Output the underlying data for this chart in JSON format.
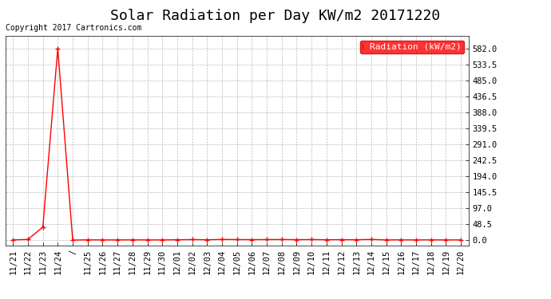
{
  "title": "Solar Radiation per Day KW/m2 20171220",
  "copyright_text": "Copyright 2017 Cartronics.com",
  "legend_label": "Radiation (kW/m2)",
  "line_color": "#ff0000",
  "background_color": "#ffffff",
  "grid_color": "#bbbbbb",
  "yticks": [
    0.0,
    48.5,
    97.0,
    145.5,
    194.0,
    242.5,
    291.0,
    339.5,
    388.0,
    436.5,
    485.0,
    533.5,
    582.0
  ],
  "ylim": [
    -15,
    620
  ],
  "x_labels": [
    "11/21",
    "11/22",
    "11/23",
    "11/24",
    "/",
    "11/25",
    "11/26",
    "11/27",
    "11/28",
    "11/29",
    "11/30",
    "12/01",
    "12/02",
    "12/03",
    "12/04",
    "12/05",
    "12/06",
    "12/07",
    "12/08",
    "12/09",
    "12/10",
    "12/11",
    "12/12",
    "12/13",
    "12/14",
    "12/15",
    "12/16",
    "12/17",
    "12/18",
    "12/19",
    "12/20"
  ],
  "values": [
    1.0,
    2.5,
    40.0,
    582.0,
    0.5,
    1.2,
    1.0,
    1.0,
    1.2,
    1.0,
    1.0,
    1.5,
    2.0,
    1.5,
    2.5,
    2.0,
    1.8,
    2.0,
    2.2,
    1.8,
    2.0,
    1.5,
    1.8,
    1.5,
    2.5,
    1.0,
    1.2,
    1.0,
    1.2,
    1.0,
    1.0
  ],
  "marker": "+",
  "marker_size": 4,
  "line_width": 1.0,
  "title_fontsize": 13,
  "tick_fontsize": 7.5,
  "legend_fontsize": 8,
  "copyright_fontsize": 7
}
